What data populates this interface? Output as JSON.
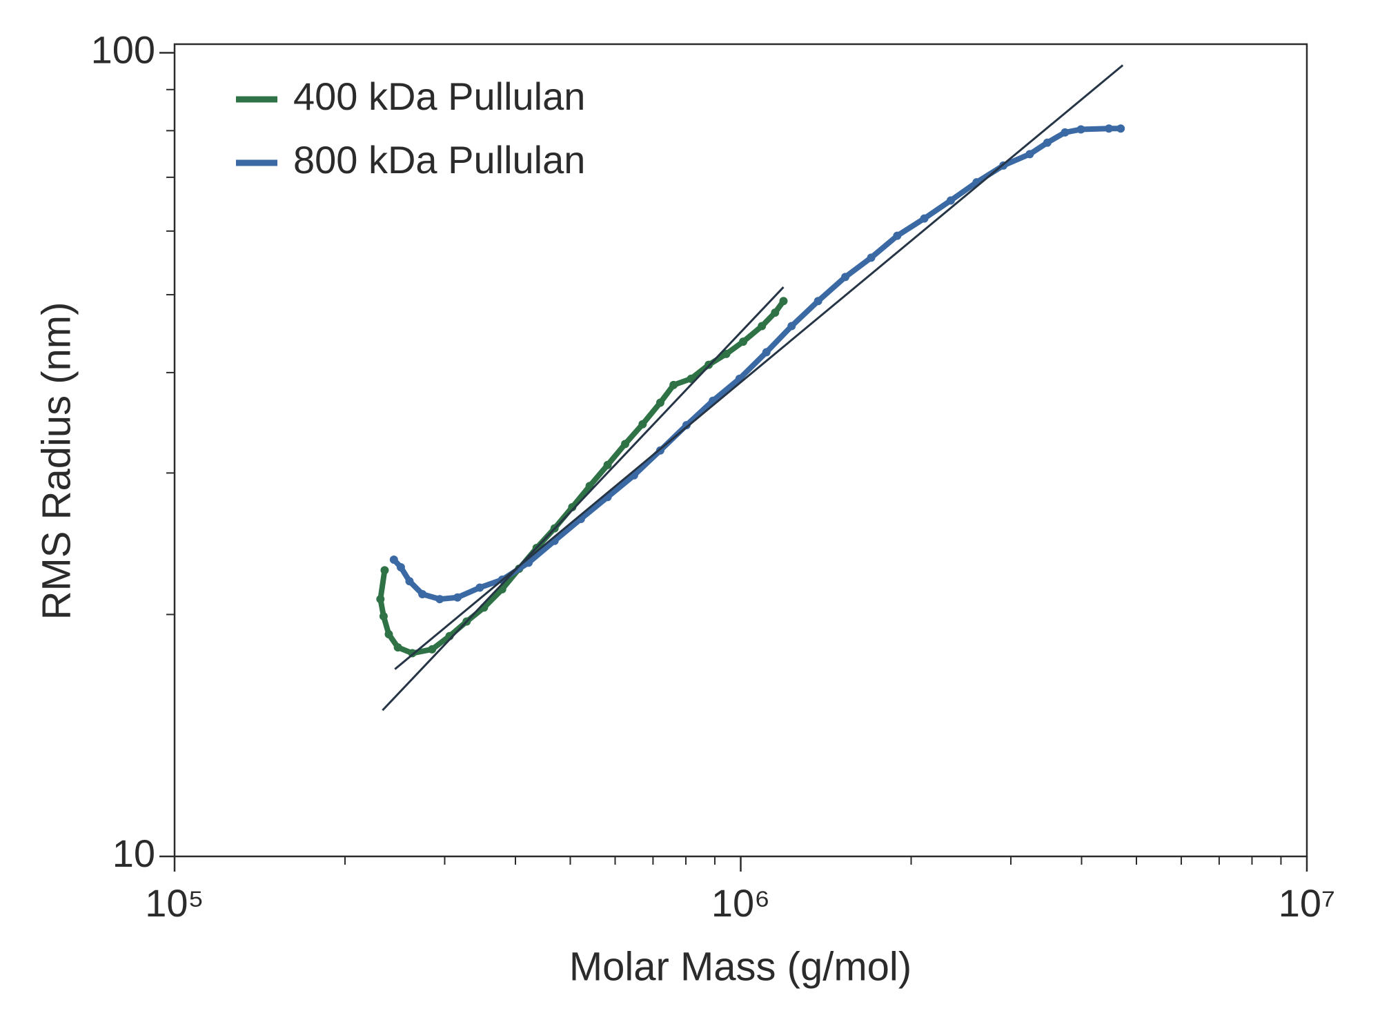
{
  "chart_data": {
    "type": "scatter",
    "log_x": true,
    "log_y": true,
    "x_label": "Molar Mass (g/mol)",
    "y_label": "RMS Radius (nm)",
    "xlim": [
      100000,
      10000000
    ],
    "xticks": [
      {
        "value": 100000,
        "label": "10⁵"
      },
      {
        "value": 1000000,
        "label": "10⁶"
      },
      {
        "value": 10000000,
        "label": "10⁷"
      }
    ],
    "xminorticks": [
      200000,
      300000,
      400000,
      500000,
      600000,
      700000,
      800000,
      900000,
      2000000,
      3000000,
      4000000,
      5000000,
      6000000,
      7000000,
      8000000,
      9000000
    ],
    "ylim": [
      10,
      100
    ],
    "yticks": [
      10,
      100
    ],
    "yminorticks": [
      20,
      30,
      40,
      50,
      60,
      70,
      80,
      90
    ],
    "legend": "upper left",
    "series": [
      {
        "name": "400 kDa Pullulan",
        "color": "#2e7245",
        "x": [
          235000,
          231000,
          234000,
          239000,
          248000,
          263000,
          285000,
          306000,
          328000,
          352000,
          379000,
          406000,
          436000,
          469000,
          504000,
          541000,
          582000,
          625000,
          671000,
          721000,
          761000,
          817000,
          878000,
          943000,
          1010000,
          1090000,
          1150000,
          1190000
        ],
        "values": [
          22.7,
          20.9,
          19.9,
          18.9,
          18.2,
          17.9,
          18.1,
          18.8,
          19.6,
          20.4,
          21.5,
          22.8,
          24.2,
          25.6,
          27.2,
          28.9,
          30.7,
          32.6,
          34.5,
          36.7,
          38.6,
          39.3,
          40.9,
          42.2,
          43.7,
          45.7,
          47.5,
          49.1
        ],
        "fit": {
          "color": "#263545",
          "x": [
            233000,
            1190000
          ],
          "values": [
            15.2,
            51.1
          ]
        }
      },
      {
        "name": "800 kDa Pullulan",
        "color": "#3a69a4",
        "x": [
          244000,
          251000,
          260000,
          274000,
          294000,
          316000,
          346000,
          379000,
          422000,
          469000,
          522000,
          582000,
          648000,
          721000,
          802000,
          893000,
          995000,
          1110000,
          1230000,
          1370000,
          1530000,
          1700000,
          1890000,
          2110000,
          2350000,
          2610000,
          2910000,
          3240000,
          3480000,
          3740000,
          3990000,
          4470000,
          4690000
        ],
        "values": [
          23.4,
          22.9,
          22.0,
          21.2,
          20.9,
          21.0,
          21.6,
          22.1,
          23.2,
          24.7,
          26.3,
          28.0,
          29.8,
          32.0,
          34.4,
          36.9,
          39.3,
          42.4,
          45.7,
          49.1,
          52.6,
          55.6,
          59.2,
          62.2,
          65.5,
          69.0,
          72.4,
          74.8,
          77.3,
          79.6,
          80.3,
          80.5,
          80.5
        ],
        "fit": {
          "color": "#263545",
          "x": [
            245000,
            4730000
          ],
          "values": [
            17.1,
            96.5
          ]
        }
      }
    ]
  }
}
